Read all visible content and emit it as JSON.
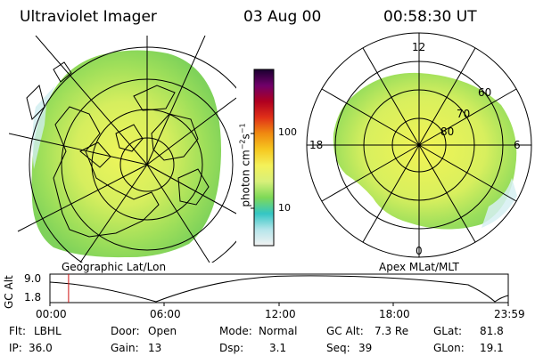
{
  "header": {
    "title": "Ultraviolet Imager",
    "date": "03 Aug 00",
    "time": "00:58:30 UT"
  },
  "colors": {
    "background": "#ffffff",
    "foreground": "#000000",
    "marker": "#d01010"
  },
  "geo_panel": {
    "label": "Geographic Lat/Lon"
  },
  "mag_panel": {
    "label": "Apex MLat/MLT",
    "mlt_labels": [
      "12",
      "18",
      "6",
      "0"
    ],
    "mlat_labels": [
      "60",
      "70",
      "80"
    ]
  },
  "colorbar": {
    "unit_label": "photon cm",
    "unit_exp1": "−2",
    "unit_s": "s",
    "unit_exp2": "−1",
    "tick_labels": [
      "100",
      "10"
    ],
    "stops": [
      "#f2f2f2",
      "#b5e5ea",
      "#34c6c4",
      "#7ed957",
      "#d8f07a",
      "#f4f15a",
      "#f6c820",
      "#f08a10",
      "#e03018",
      "#b00020",
      "#70006a",
      "#1a0030"
    ]
  },
  "timeline": {
    "axis_label": "GC Alt",
    "y_ticks": [
      "9.0",
      "1.8"
    ],
    "x_ticks": [
      "00:00",
      "06:00",
      "12:00",
      "18:00",
      "23:59"
    ],
    "current_time_hours": 0.975
  },
  "status": {
    "flt_label": "Flt:",
    "flt_value": "LBHL",
    "ip_label": "IP:",
    "ip_value": "36.0",
    "door_label": "Door:",
    "door_value": "Open",
    "gain_label": "Gain:",
    "gain_value": "13",
    "mode_label": "Mode:",
    "mode_value": "Normal",
    "dsp_label": "Dsp:",
    "dsp_value": "3.1",
    "gcalt_label": "GC Alt:",
    "gcalt_value": "7.3 Re",
    "seq_label": "Seq:",
    "seq_value": "39",
    "glat_label": "GLat:",
    "glat_value": "81.8",
    "glon_label": "GLon:",
    "glon_value": "19.1"
  }
}
